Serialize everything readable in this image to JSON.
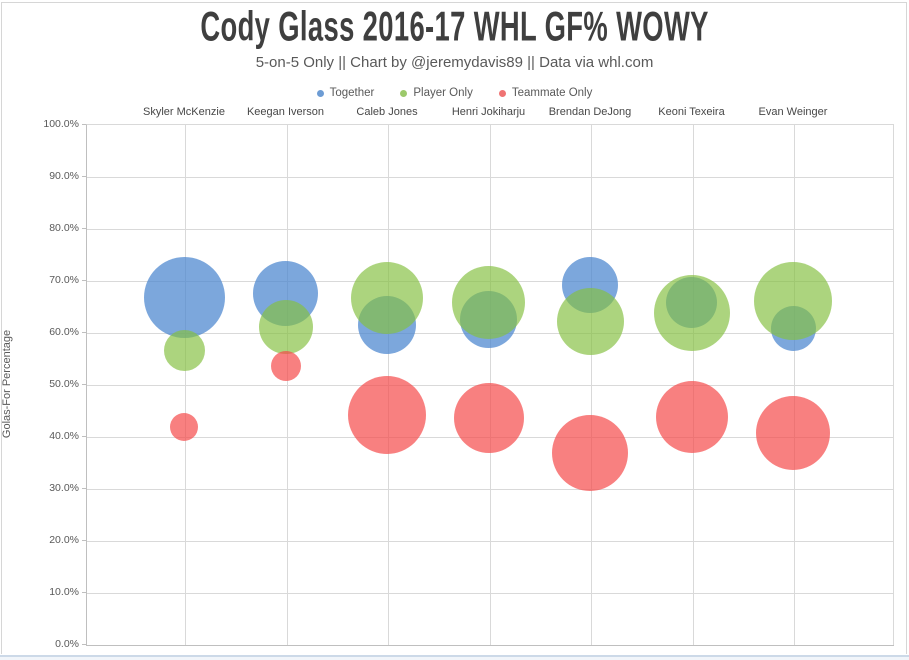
{
  "header": {
    "title": "Cody Glass 2016-17 WHL GF% WOWY",
    "subtitle": "5-on-5 Only || Chart by @jeremydavis89 || Data via whl.com"
  },
  "legend": {
    "items": [
      {
        "label": "Together",
        "color": "#6d9cd4"
      },
      {
        "label": "Player Only",
        "color": "#9cc96b"
      },
      {
        "label": "Teammate Only",
        "color": "#ef7373"
      }
    ]
  },
  "y_axis": {
    "title": "Golas-For Percentage",
    "tick_labels": [
      "100.0%",
      "90.0%",
      "80.0%",
      "70.0%",
      "60.0%",
      "50.0%",
      "40.0%",
      "30.0%",
      "20.0%",
      "10.0%",
      "0.0%"
    ]
  },
  "chart_data": {
    "type": "scatter",
    "subtype": "bubble",
    "title": "Cody Glass 2016-17 WHL GF% WOWY",
    "subtitle": "5-on-5 Only || Chart by @jeremydavis89 || Data via whl.com",
    "xlabel": "",
    "ylabel": "Golas-For Percentage",
    "ylim": [
      0,
      100
    ],
    "ytick_step_pct": 10,
    "grid": true,
    "legend_position": "top",
    "categories": [
      "Skyler McKenzie",
      "Keegan Iverson",
      "Caleb Jones",
      "Henri Jokiharju",
      "Brendan DeJong",
      "Keoni Texeira",
      "Evan Weinger"
    ],
    "series": [
      {
        "name": "Together",
        "fill": "rgba(73,133,206,0.72)",
        "gf_pct_values": [
          66.6,
          67.4,
          61.4,
          62.4,
          69.0,
          65.7,
          60.7
        ],
        "bubble_radius_px": [
          40.5,
          32.5,
          29,
          28.5,
          28,
          25.5,
          22.5
        ]
      },
      {
        "name": "Player Only",
        "fill": "rgba(132,192,65,0.68)",
        "gf_pct_values": [
          56.5,
          61.0,
          66.6,
          65.7,
          62.0,
          63.7,
          65.9
        ],
        "bubble_radius_px": [
          20.5,
          27,
          36,
          36.5,
          33.5,
          38,
          39
        ]
      },
      {
        "name": "Teammate Only",
        "fill": "rgba(245,74,74,0.70)",
        "gf_pct_values": [
          41.8,
          53.4,
          44.0,
          43.4,
          36.8,
          43.7,
          40.6
        ],
        "bubble_radius_px": [
          14,
          15,
          39,
          35,
          38,
          36,
          37
        ]
      }
    ]
  }
}
